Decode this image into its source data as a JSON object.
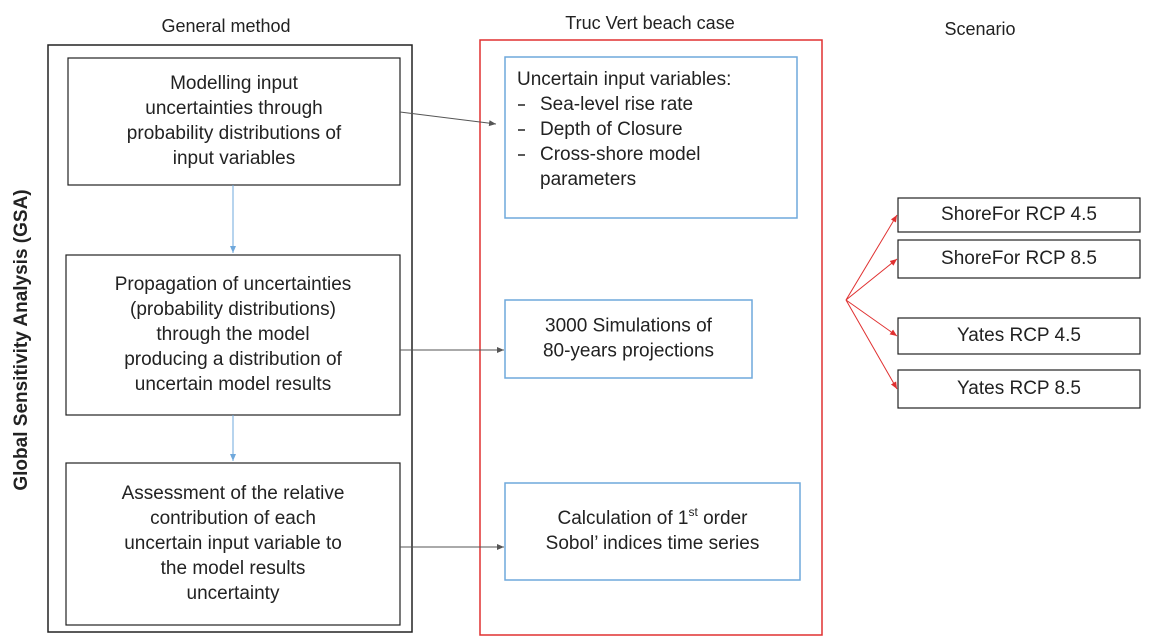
{
  "columns": {
    "general_method": "General method",
    "beach_case": "Truc Vert beach case",
    "scenario": "Scenario"
  },
  "side_label": "Global Sensitivity Analysis (GSA)",
  "method_steps": [
    {
      "lines": [
        "Modelling input",
        "uncertainties through",
        "probability distributions of",
        "input variables"
      ]
    },
    {
      "lines": [
        "Propagation of uncertainties",
        "(probability distributions)",
        "through the model",
        "producing a distribution of",
        "uncertain  model results"
      ]
    },
    {
      "lines": [
        "Assessment of the relative",
        "contribution of each",
        "uncertain input variable to",
        "the model results",
        "uncertainty"
      ]
    }
  ],
  "case_steps": [
    {
      "title": "Uncertain input variables:",
      "items": [
        [
          "Sea-level rise rate"
        ],
        [
          "Depth of Closure"
        ],
        [
          "Cross-shore model",
          "parameters"
        ]
      ]
    },
    {
      "lines": [
        "3000 Simulations of",
        "80-years projections"
      ]
    },
    {
      "lines": [
        {
          "before": "Calculation of 1",
          "sup": "st",
          "after": " order"
        },
        "Sobol’ indices time series"
      ]
    }
  ],
  "scenarios": [
    "ShoreFor RCP 4.5",
    "ShoreFor RCP 8.5",
    "Yates RCP 4.5",
    "Yates RCP 8.5"
  ]
}
